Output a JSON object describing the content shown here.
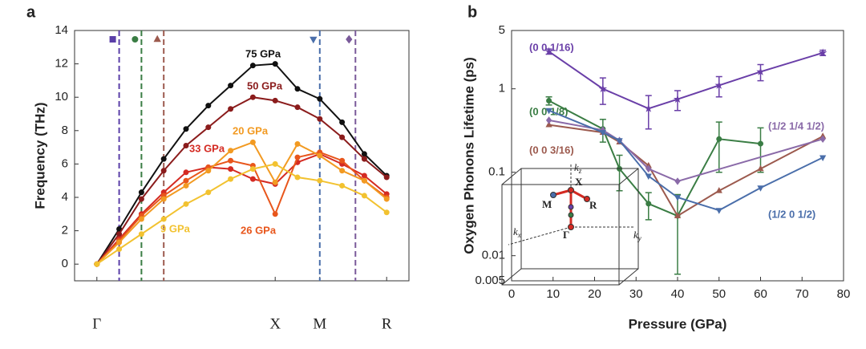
{
  "chart_data": [
    {
      "type": "line",
      "panel": "a",
      "ylabel": "Frequency (THz)",
      "x": [
        0,
        1,
        2,
        3,
        4,
        5,
        6,
        7,
        8,
        9,
        10,
        11,
        12,
        13
      ],
      "xlim": [
        -1,
        14
      ],
      "xticks": [
        {
          "value": 0,
          "label": "Γ"
        },
        {
          "value": 8,
          "label": "X"
        },
        {
          "value": 10,
          "label": "M"
        },
        {
          "value": 13,
          "label": "R"
        }
      ],
      "ylim": [
        -1,
        14
      ],
      "yticks": [
        0,
        2,
        4,
        6,
        8,
        10,
        12,
        14
      ],
      "series": [
        {
          "name": "75 GPa",
          "color": "#111111",
          "values": [
            0,
            2.1,
            4.3,
            6.3,
            8.1,
            9.5,
            10.7,
            11.9,
            12.0,
            10.5,
            9.9,
            8.5,
            6.6,
            5.3
          ]
        },
        {
          "name": "50 GPa",
          "color": "#8b1c1c",
          "values": [
            0,
            1.8,
            3.9,
            5.6,
            7.1,
            8.2,
            9.3,
            10.0,
            9.8,
            9.4,
            8.7,
            7.6,
            6.3,
            5.2
          ]
        },
        {
          "name": "33 GPa",
          "color": "#d42a22",
          "values": [
            0,
            1.5,
            3.0,
            4.3,
            5.5,
            5.8,
            5.7,
            5.1,
            4.8,
            6.1,
            6.6,
            6.0,
            5.3,
            4.2
          ]
        },
        {
          "name": "26 GPa",
          "color": "#e8561c",
          "values": [
            0,
            1.4,
            2.9,
            4.1,
            5.0,
            5.8,
            6.2,
            5.9,
            3.0,
            6.4,
            6.7,
            6.2,
            5.0,
            4.0
          ]
        },
        {
          "name": "20 GPa",
          "color": "#f29a22",
          "values": [
            0,
            1.3,
            2.7,
            3.9,
            4.7,
            5.6,
            6.8,
            7.3,
            4.9,
            7.2,
            6.5,
            5.6,
            5.0,
            3.9
          ]
        },
        {
          "name": "9 GPa",
          "color": "#f2c230",
          "values": [
            0,
            0.9,
            1.8,
            2.7,
            3.6,
            4.3,
            5.1,
            5.7,
            6.0,
            5.2,
            5.0,
            4.7,
            4.1,
            3.1
          ]
        }
      ],
      "vlines": [
        {
          "x": 1,
          "color": "#5b3fa8",
          "marker": "square"
        },
        {
          "x": 2,
          "color": "#3a7d44",
          "marker": "circle"
        },
        {
          "x": 3,
          "color": "#9c5a4e",
          "marker": "triangle-up"
        },
        {
          "x": 10,
          "color": "#4a6eaa",
          "marker": "triangle-down"
        },
        {
          "x": 11.6,
          "color": "#7a5a9a",
          "marker": "diamond"
        }
      ]
    },
    {
      "type": "line",
      "panel": "b",
      "xlabel": "Pressure (GPa)",
      "ylabel": "Oxygen Phonons Lifetime (ps)",
      "xlim": [
        0,
        80
      ],
      "xticks": [
        0,
        10,
        20,
        30,
        40,
        50,
        60,
        70,
        80
      ],
      "ylim": [
        0.005,
        5
      ],
      "yscale": "log",
      "yticks": [
        0.005,
        0.01,
        0.1,
        1,
        5
      ],
      "series": [
        {
          "name": "(0 0 1/16)",
          "color": "#6a3fa8",
          "marker": "star",
          "x": [
            9,
            22,
            33,
            40,
            50,
            60,
            75
          ],
          "values": [
            2.8,
            1.0,
            0.58,
            0.75,
            1.1,
            1.6,
            2.7
          ],
          "errors": [
            0.2,
            0.35,
            0.25,
            0.2,
            0.3,
            0.35,
            0.2
          ]
        },
        {
          "name": "(0 0 1/8)",
          "color": "#3a7d44",
          "marker": "circle",
          "x": [
            9,
            22,
            26,
            33,
            40,
            50,
            60
          ],
          "values": [
            0.72,
            0.33,
            0.11,
            0.042,
            0.03,
            0.25,
            0.22
          ],
          "errors": [
            0.08,
            0.1,
            0.05,
            0.015,
            0.024,
            0.15,
            0.12
          ]
        },
        {
          "name": "(0 0 3/16)",
          "color": "#9c5a4e",
          "marker": "triangle-up",
          "x": [
            9,
            22,
            26,
            33,
            40,
            50,
            60,
            75
          ],
          "values": [
            0.37,
            0.3,
            0.23,
            0.12,
            0.03,
            0.06,
            0.11,
            0.27
          ]
        },
        {
          "name": "(1/2 1/4 1/2)",
          "color": "#8a6aa8",
          "marker": "diamond",
          "x": [
            9,
            22,
            26,
            33,
            40,
            75
          ],
          "values": [
            0.42,
            0.32,
            0.24,
            0.11,
            0.078,
            0.25
          ]
        },
        {
          "name": "(1/2 0 1/2)",
          "color": "#4a6eaa",
          "marker": "triangle-down",
          "x": [
            9,
            22,
            26,
            33,
            40,
            50,
            60,
            75
          ],
          "values": [
            0.55,
            0.3,
            0.24,
            0.09,
            0.05,
            0.035,
            0.065,
            0.15
          ]
        }
      ],
      "inset_labels": {
        "M": "M",
        "X": "X",
        "R": "R",
        "gamma": "Γ",
        "kx": "k",
        "ky": "k",
        "kz": "k",
        "kx_sub": "x",
        "ky_sub": "y",
        "kz_sub": "z"
      }
    }
  ]
}
